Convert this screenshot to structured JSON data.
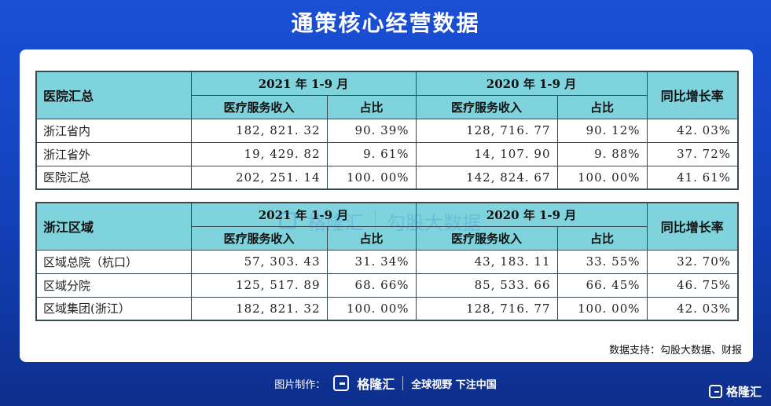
{
  "header": {
    "title": "通策核心经营数据"
  },
  "table1": {
    "corner": "医院汇总",
    "group_2021": "2021 年 1-9 月",
    "group_2020": "2020 年 1-9 月",
    "col_revenue": "医疗服务收入",
    "col_share": "占比",
    "col_growth": "同比增长率",
    "rows": [
      {
        "label": "浙江省内",
        "rev2021": "182, 821. 32",
        "share2021": "90. 39%",
        "rev2020": "128, 716. 77",
        "share2020": "90. 12%",
        "growth": "42. 03%"
      },
      {
        "label": "浙江省外",
        "rev2021": "19, 429. 82",
        "share2021": "9. 61%",
        "rev2020": "14, 107. 90",
        "share2020": "9. 88%",
        "growth": "37. 72%"
      },
      {
        "label": "医院汇总",
        "rev2021": "202, 251. 14",
        "share2021": "100. 00%",
        "rev2020": "142, 824. 67",
        "share2020": "100. 00%",
        "growth": "41. 61%"
      }
    ]
  },
  "table2": {
    "corner": "浙江区域",
    "group_2021": "2021 年 1-9 月",
    "group_2020": "2020 年 1-9 月",
    "col_revenue": "医疗服务收入",
    "col_share": "占比",
    "col_growth": "同比增长率",
    "rows": [
      {
        "label": "区域总院（杭口）",
        "rev2021": "57, 303. 43",
        "share2021": "31. 34%",
        "rev2020": "43, 183. 11",
        "share2020": "33. 55%",
        "growth": "32. 70%"
      },
      {
        "label": "区域分院",
        "rev2021": "125, 517. 89",
        "share2021": "68. 66%",
        "rev2020": "85, 533. 66",
        "share2020": "66. 45%",
        "growth": "46. 75%"
      },
      {
        "label": "区域集团(浙江）",
        "rev2021": "182, 821. 32",
        "share2021": "100. 00%",
        "rev2020": "128, 716. 77",
        "share2020": "100. 00%",
        "growth": "42. 03%"
      }
    ]
  },
  "source": "数据支持：勾股大数据、财报",
  "watermark": {
    "brand": "格隆汇",
    "partner": "勾股大数据"
  },
  "footer": {
    "made_by": "图片制作：",
    "brand": "格隆汇",
    "slogan": "全球视野 下注中国"
  },
  "corner_logo": {
    "brand": "格隆汇"
  },
  "colors": {
    "background": "#1a4fd6",
    "header_fill": "#7ed3dc",
    "card": "#ffffff"
  }
}
